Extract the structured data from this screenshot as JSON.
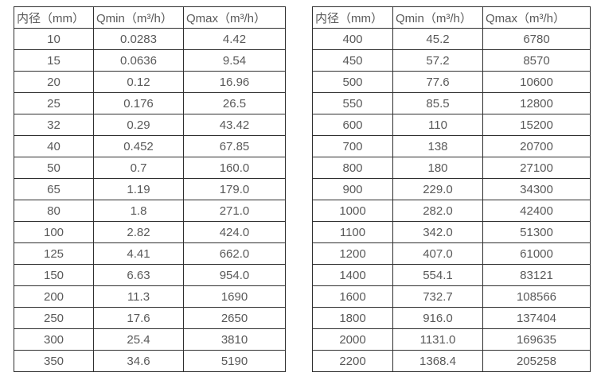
{
  "colors": {
    "background": "#ffffff",
    "border": "#2f2f2f",
    "text": "#595959"
  },
  "chart_data": [
    {
      "type": "table",
      "title": "",
      "headers": [
        "内径（mm）",
        "Qmin（m³/h）",
        "Qmax（m³/h）"
      ],
      "rows": [
        [
          "10",
          "0.0283",
          "4.42"
        ],
        [
          "15",
          "0.0636",
          "9.54"
        ],
        [
          "20",
          "0.12",
          "16.96"
        ],
        [
          "25",
          "0.176",
          "26.5"
        ],
        [
          "32",
          "0.29",
          "43.42"
        ],
        [
          "40",
          "0.452",
          "67.85"
        ],
        [
          "50",
          "0.7",
          "160.0"
        ],
        [
          "65",
          "1.19",
          "179.0"
        ],
        [
          "80",
          "1.8",
          "271.0"
        ],
        [
          "100",
          "2.82",
          "424.0"
        ],
        [
          "125",
          "4.41",
          "662.0"
        ],
        [
          "150",
          "6.63",
          "954.0"
        ],
        [
          "200",
          "11.3",
          "1690"
        ],
        [
          "250",
          "17.6",
          "2650"
        ],
        [
          "300",
          "25.4",
          "3810"
        ],
        [
          "350",
          "34.6",
          "5190"
        ]
      ]
    },
    {
      "type": "table",
      "title": "",
      "headers": [
        "内径（mm）",
        "Qmin（m³/h）",
        "Qmax（m³/h）"
      ],
      "rows": [
        [
          "400",
          "45.2",
          "6780"
        ],
        [
          "450",
          "57.2",
          "8570"
        ],
        [
          "500",
          "77.6",
          "10600"
        ],
        [
          "550",
          "85.5",
          "12800"
        ],
        [
          "600",
          "110",
          "15200"
        ],
        [
          "700",
          "138",
          "20700"
        ],
        [
          "800",
          "180",
          "27100"
        ],
        [
          "900",
          "229.0",
          "34300"
        ],
        [
          "1000",
          "282.0",
          "42400"
        ],
        [
          "1100",
          "342.0",
          "51300"
        ],
        [
          "1200",
          "407.0",
          "61000"
        ],
        [
          "1400",
          "554.1",
          "83121"
        ],
        [
          "1600",
          "732.7",
          "108566"
        ],
        [
          "1800",
          "916.0",
          "137404"
        ],
        [
          "2000",
          "1131.0",
          "169635"
        ],
        [
          "2200",
          "1368.4",
          "205258"
        ]
      ]
    }
  ]
}
